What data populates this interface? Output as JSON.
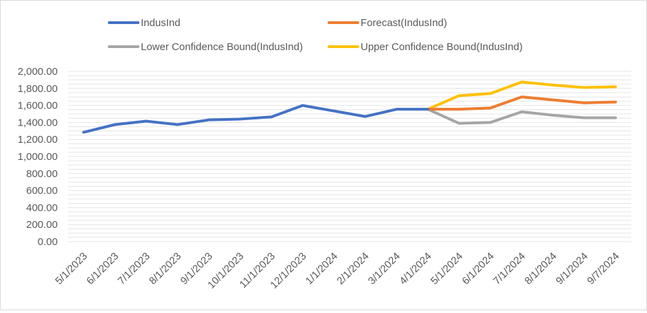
{
  "chart_data": {
    "type": "line",
    "categories": [
      "5/1/2023",
      "6/1/2023",
      "7/1/2023",
      "8/1/2023",
      "9/1/2023",
      "10/1/2023",
      "11/1/2023",
      "12/1/2023",
      "1/1/2024",
      "2/1/2024",
      "3/1/2024",
      "4/1/2024",
      "5/1/2024",
      "6/1/2024",
      "7/1/2024",
      "8/1/2024",
      "9/1/2024",
      "9/7/2024"
    ],
    "ylim": [
      0,
      2000
    ],
    "yticks": [
      "0.00",
      "200.00",
      "400.00",
      "600.00",
      "800.00",
      "1,000.00",
      "1,200.00",
      "1,400.00",
      "1,600.00",
      "1,800.00",
      "2,000.00"
    ],
    "grid": true,
    "legend_position": "top",
    "series": [
      {
        "name": "IndusInd",
        "color": "#4472c4",
        "values": [
          1285,
          1375,
          1415,
          1375,
          1430,
          1440,
          1465,
          1600,
          1535,
          1470,
          1555,
          1555,
          null,
          null,
          null,
          null,
          null,
          null
        ]
      },
      {
        "name": "Forecast(IndusInd)",
        "color": "#ed7d31",
        "values": [
          null,
          null,
          null,
          null,
          null,
          null,
          null,
          null,
          null,
          null,
          null,
          1555,
          1555,
          1570,
          1700,
          1665,
          1630,
          1640
        ]
      },
      {
        "name": "Lower Confidence Bound(IndusInd)",
        "color": "#a5a5a5",
        "values": [
          null,
          null,
          null,
          null,
          null,
          null,
          null,
          null,
          null,
          null,
          null,
          1555,
          1390,
          1400,
          1525,
          1485,
          1455,
          1455
        ]
      },
      {
        "name": "Upper Confidence Bound(IndusInd)",
        "color": "#ffc000",
        "values": [
          null,
          null,
          null,
          null,
          null,
          null,
          null,
          null,
          null,
          null,
          null,
          1555,
          1715,
          1740,
          1875,
          1840,
          1810,
          1820
        ]
      }
    ]
  }
}
